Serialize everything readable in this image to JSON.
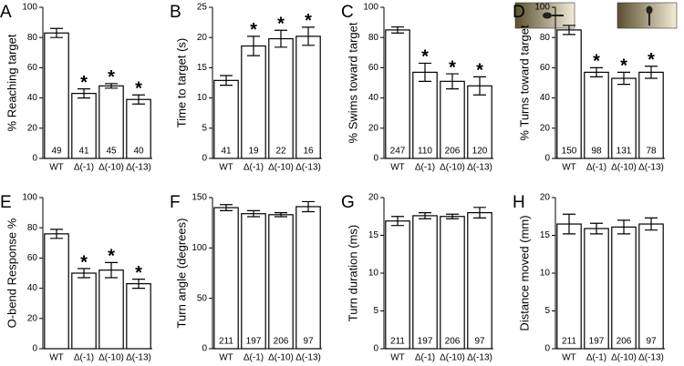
{
  "chart_data": [
    {
      "type": "bar",
      "panel": "A",
      "y_label": "% Reaching target",
      "categories": [
        "WT",
        "Δ(-1)",
        "Δ(-10)",
        "Δ(-13)"
      ],
      "values": [
        83,
        43,
        48,
        39
      ],
      "errors": [
        3,
        3,
        1.5,
        3
      ],
      "n_labels": [
        49,
        41,
        45,
        40
      ],
      "markers": [
        null,
        "*",
        "*",
        "*"
      ],
      "color": "#ffffff",
      "ylim": [
        0,
        100
      ],
      "yticks": [
        0,
        20,
        40,
        60,
        80,
        100
      ]
    },
    {
      "type": "bar",
      "panel": "B",
      "y_label": "Time to target (s)",
      "categories": [
        "WT",
        "Δ(-1)",
        "Δ(-10)",
        "Δ(-13)"
      ],
      "values": [
        12.9,
        18.6,
        19.8,
        20.2
      ],
      "errors": [
        0.8,
        1.6,
        1.4,
        1.5
      ],
      "n_labels": [
        41,
        19,
        22,
        16
      ],
      "markers": [
        null,
        "*",
        "*",
        "*"
      ],
      "color": "#ffffff",
      "ylim": [
        0,
        25
      ],
      "yticks": [
        0,
        5,
        10,
        15,
        20,
        25
      ]
    },
    {
      "type": "bar",
      "panel": "C",
      "y_label": "% Swims toward target",
      "categories": [
        "WT",
        "Δ(-1)",
        "Δ(-10)",
        "Δ(-13)"
      ],
      "values": [
        85,
        57,
        51,
        48
      ],
      "errors": [
        2,
        6,
        5,
        6
      ],
      "n_labels": [
        247,
        110,
        206,
        120
      ],
      "markers": [
        null,
        "*",
        "*",
        "*"
      ],
      "color": "#ffffff",
      "ylim": [
        0,
        100
      ],
      "yticks": [
        0,
        20,
        40,
        60,
        80,
        100
      ]
    },
    {
      "type": "bar",
      "panel": "D",
      "y_label": "% Turns toward target",
      "categories": [
        "WT",
        "Δ(-1)",
        "Δ(-10)",
        "Δ(-13)"
      ],
      "values": [
        85,
        57,
        53,
        57
      ],
      "errors": [
        3,
        3,
        4,
        4
      ],
      "n_labels": [
        150,
        98,
        131,
        78
      ],
      "markers": [
        null,
        "*",
        "*",
        "*"
      ],
      "color": "#ffffff",
      "ylim": [
        0,
        100
      ],
      "yticks": [
        0,
        20,
        40,
        60,
        80,
        100
      ]
    },
    {
      "type": "bar",
      "panel": "E",
      "y_label": "O-bend Response %",
      "categories": [
        "WT",
        "Δ(-1)",
        "Δ(-10)",
        "Δ(-13)"
      ],
      "values": [
        76,
        50,
        52,
        43
      ],
      "errors": [
        3,
        3,
        5,
        3
      ],
      "markers": [
        null,
        "*",
        "*",
        "*"
      ],
      "color": "#ffffff",
      "ylim": [
        0,
        100
      ],
      "yticks": [
        0,
        20,
        40,
        60,
        80,
        100
      ]
    },
    {
      "type": "bar",
      "panel": "F",
      "y_label": "Turn angle (degrees)",
      "categories": [
        "WT",
        "Δ(-1)",
        "Δ(-10)",
        "Δ(-13)"
      ],
      "values": [
        140,
        134,
        133,
        141
      ],
      "errors": [
        3,
        3,
        2,
        5
      ],
      "n_labels": [
        211,
        197,
        206,
        97
      ],
      "color": "#ffffff",
      "ylim": [
        0,
        150
      ],
      "yticks": [
        0,
        50,
        100,
        150
      ]
    },
    {
      "type": "bar",
      "panel": "G",
      "y_label": "Turn duration (ms)",
      "categories": [
        "WT",
        "Δ(-1)",
        "Δ(-10)",
        "Δ(-13)"
      ],
      "values": [
        16.9,
        17.6,
        17.5,
        18
      ],
      "errors": [
        0.6,
        0.4,
        0.3,
        0.7
      ],
      "n_labels": [
        211,
        197,
        206,
        97
      ],
      "color": "#ffffff",
      "ylim": [
        0,
        20
      ],
      "yticks": [
        0,
        5,
        10,
        15,
        20
      ]
    },
    {
      "type": "bar",
      "panel": "H",
      "y_label": "Distance moved (mm)",
      "categories": [
        "WT",
        "Δ(-1)",
        "Δ(-10)",
        "Δ(-13)"
      ],
      "values": [
        16.5,
        15.9,
        16.1,
        16.5
      ],
      "errors": [
        1.3,
        0.7,
        0.9,
        0.8
      ],
      "n_labels": [
        211,
        197,
        206,
        97
      ],
      "color": "#ffffff",
      "ylim": [
        0,
        20
      ],
      "yticks": [
        0,
        5,
        10,
        15,
        20
      ]
    }
  ]
}
